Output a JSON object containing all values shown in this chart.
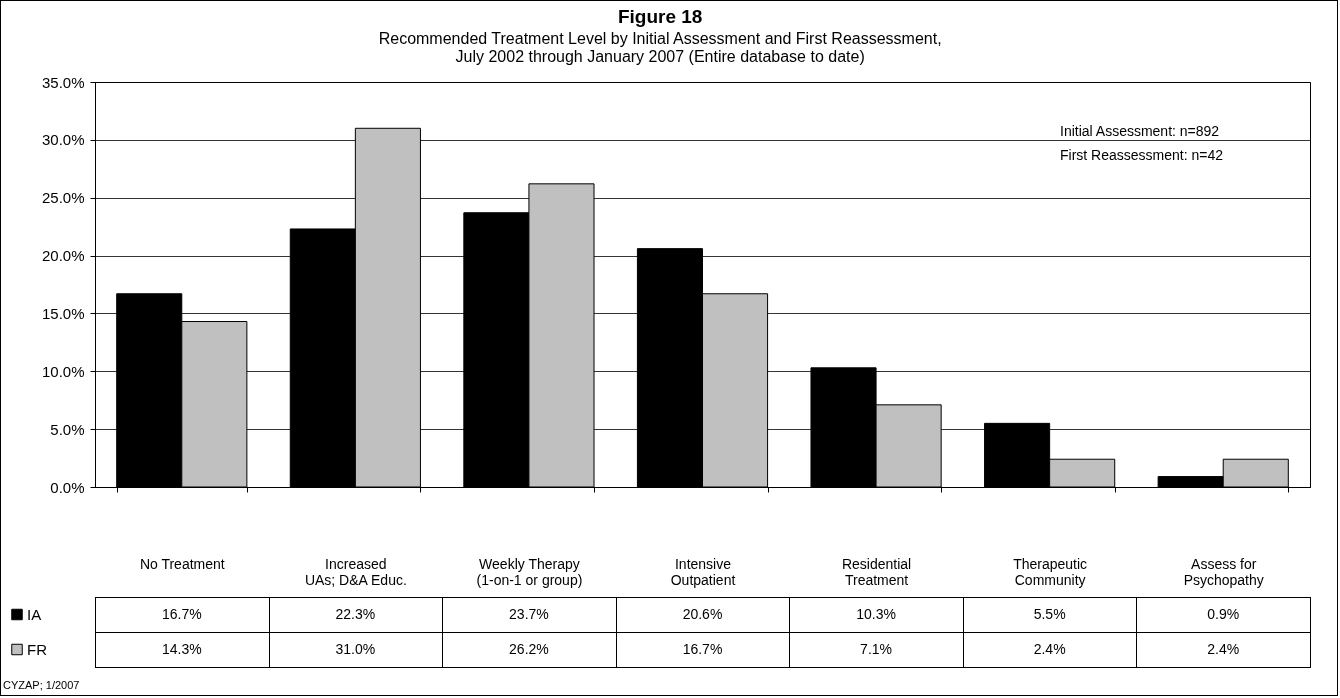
{
  "chart_data": {
    "type": "bar",
    "title": "Figure 18",
    "subtitle": "Recommended Treatment Level by Initial Assessment and First Reassessment, July 2002 through January 2007 (Entire database to date)",
    "categories": [
      "No Treatment",
      "Increased UAs; D&A Educ.",
      "Weekly Therapy (1-on-1 or group)",
      "Intensive Outpatient",
      "Residential Treatment",
      "Therapeutic Community",
      "Assess for Psychopathy"
    ],
    "series": [
      {
        "name": "IA",
        "color": "#000000",
        "values": [
          16.7,
          22.3,
          23.7,
          20.6,
          10.3,
          5.5,
          0.9
        ],
        "value_labels": [
          "16.7%",
          "22.3%",
          "23.7%",
          "20.6%",
          "10.3%",
          "5.5%",
          "0.9%"
        ]
      },
      {
        "name": "FR",
        "color": "#c0c0c0",
        "values": [
          14.3,
          31.0,
          26.2,
          16.7,
          7.1,
          2.4,
          2.4
        ],
        "value_labels": [
          "14.3%",
          "31.0%",
          "26.2%",
          "16.7%",
          "7.1%",
          "2.4%",
          "2.4%"
        ]
      }
    ],
    "ylim": [
      0,
      35
    ],
    "yticks": [
      {
        "value": 0,
        "label": "0.0%"
      },
      {
        "value": 5,
        "label": "5.0%"
      },
      {
        "value": 10,
        "label": "10.0%"
      },
      {
        "value": 15,
        "label": "15.0%"
      },
      {
        "value": 20,
        "label": "20.0%"
      },
      {
        "value": 25,
        "label": "25.0%"
      },
      {
        "value": 30,
        "label": "30.0%"
      },
      {
        "value": 35,
        "label": "35.0%"
      }
    ],
    "grid": "y",
    "legend": "bottom left",
    "annotations": [
      "Initial Assessment: n=892",
      "First Reassessment: n=42",
      "CYZAP; 1/2007"
    ]
  }
}
